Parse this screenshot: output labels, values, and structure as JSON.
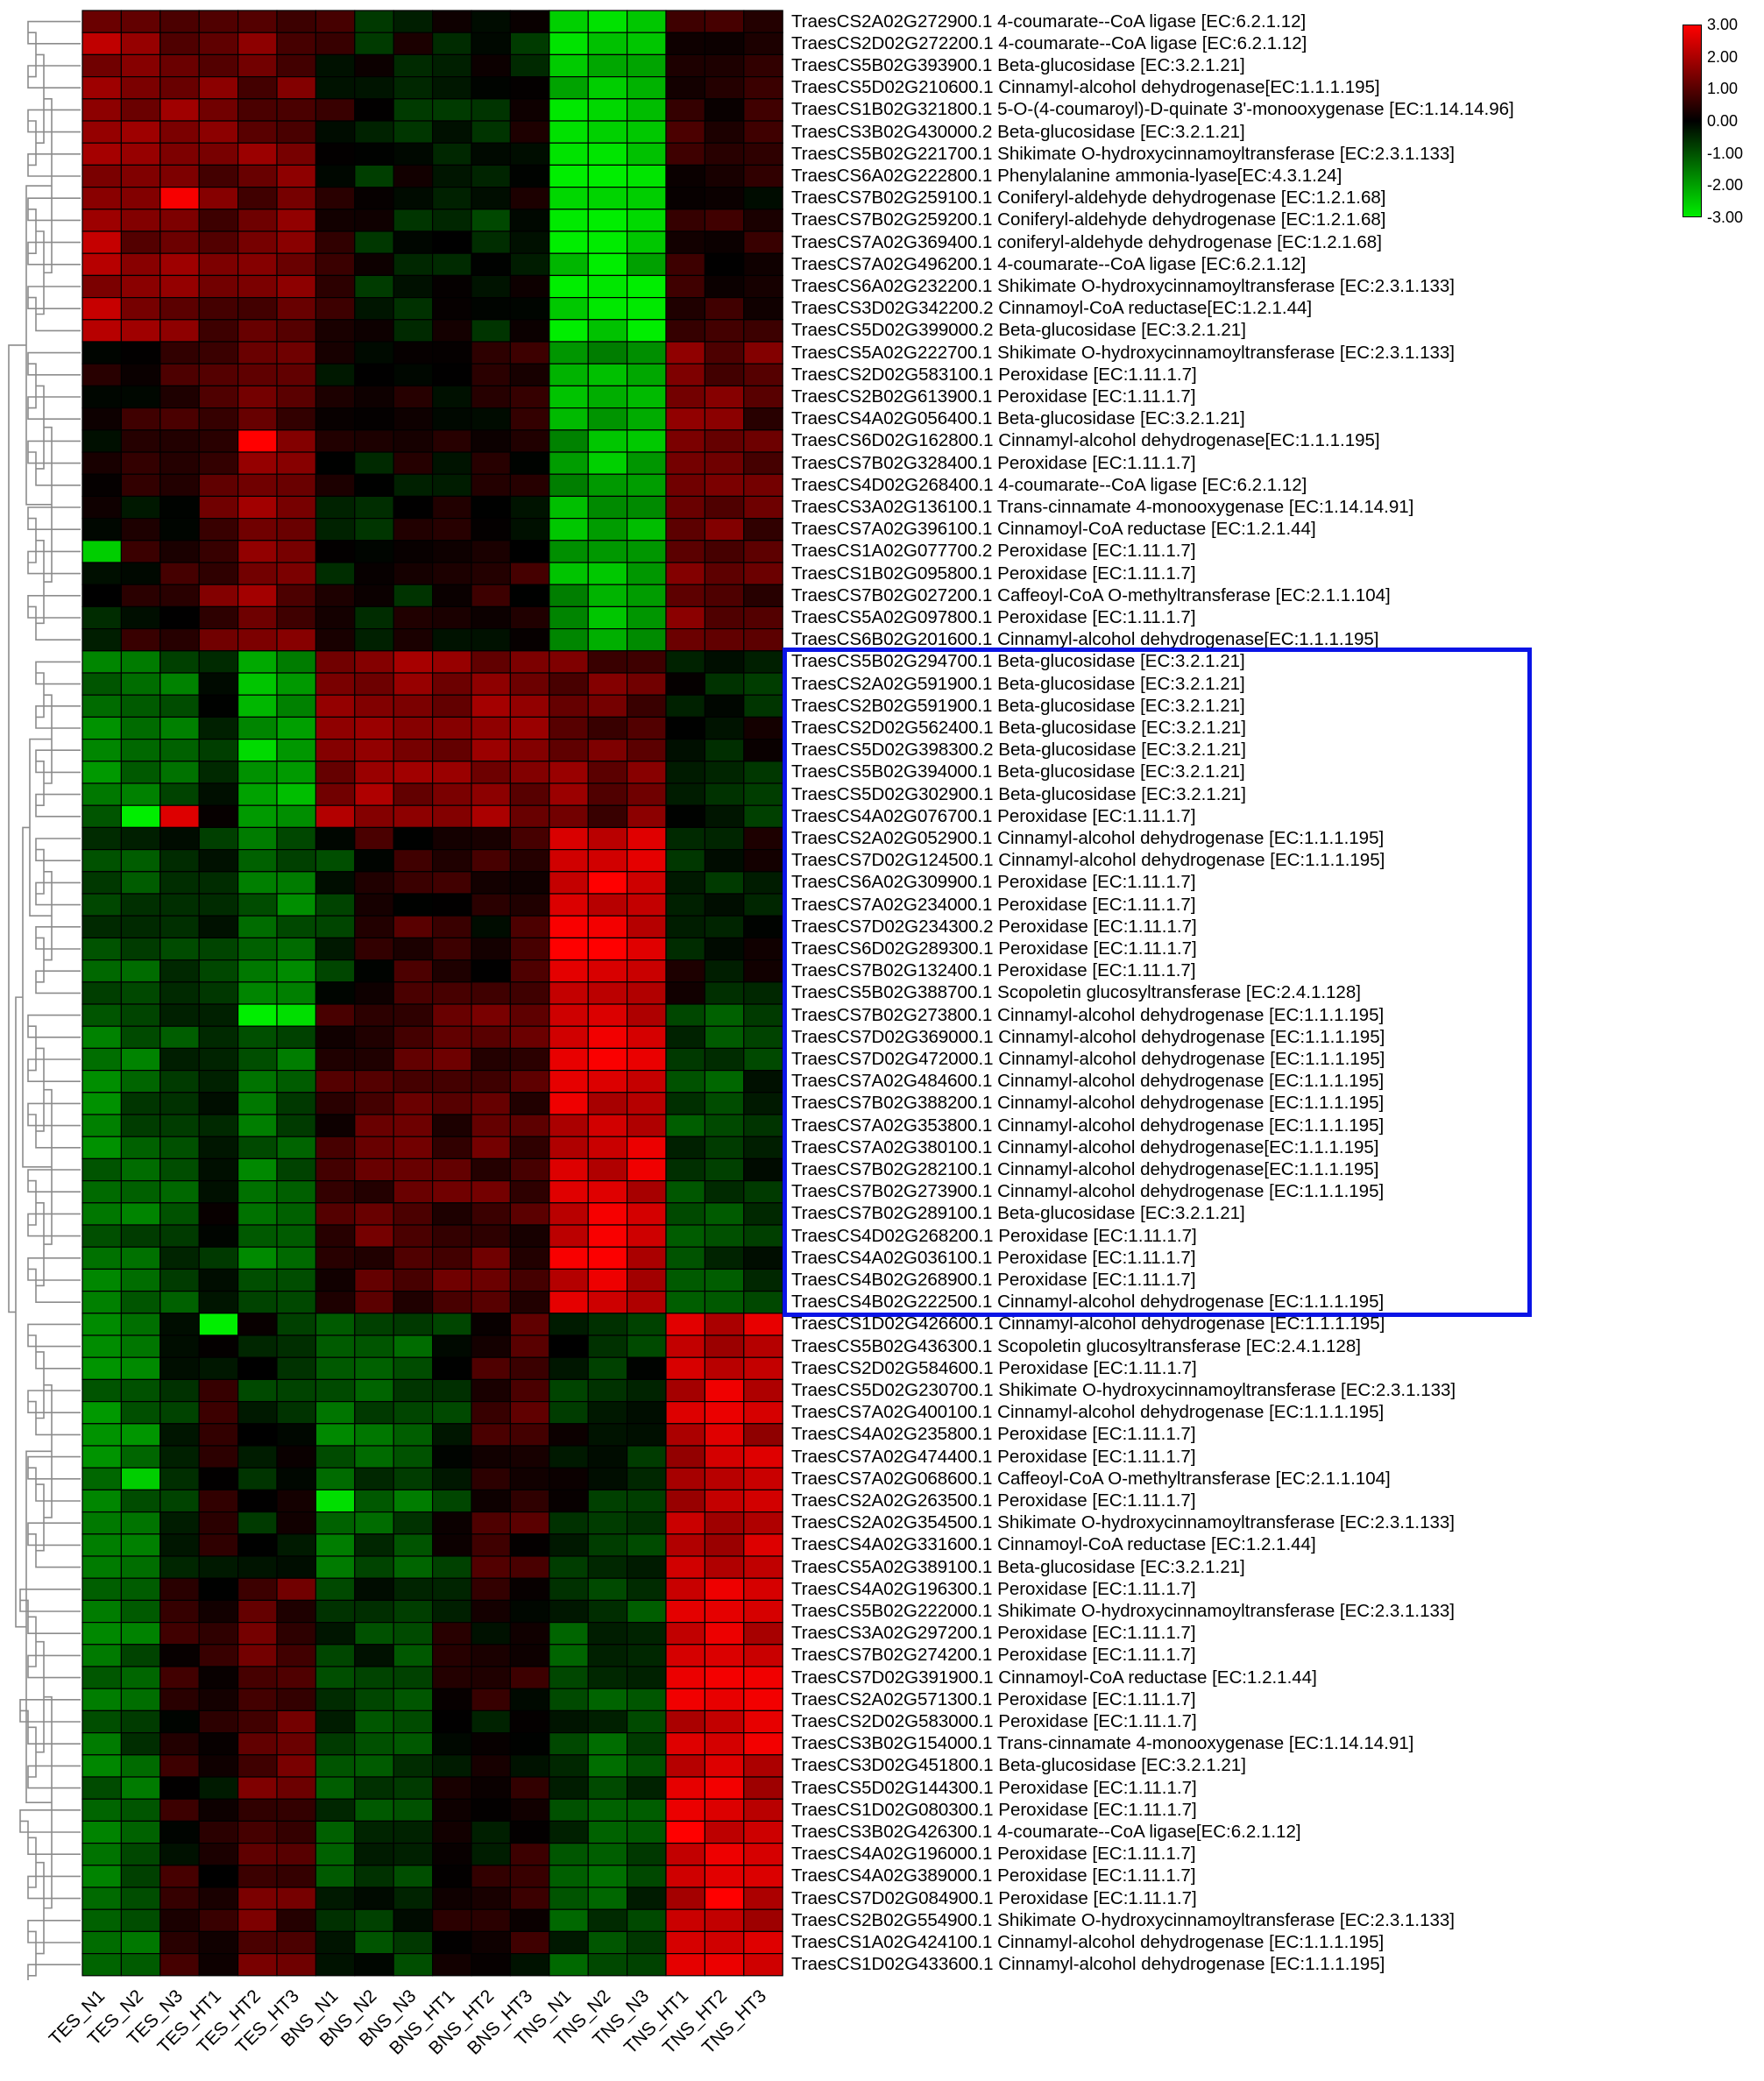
{
  "chart_data": {
    "type": "heatmap",
    "columns": [
      "TES_N1",
      "TES_N2",
      "TES_N3",
      "TES_HT1",
      "TES_HT2",
      "TES_HT3",
      "BNS_N1",
      "BNS_N2",
      "BNS_N3",
      "BNS_HT1",
      "BNS_HT2",
      "BNS_HT3",
      "TNS_N1",
      "TNS_N2",
      "TNS_N3",
      "TNS_HT1",
      "TNS_HT2",
      "TNS_HT3"
    ],
    "rows": [
      "TraesCS2A02G272900.1 4-coumarate--CoA ligase [EC:6.2.1.12]",
      "TraesCS2D02G272200.1 4-coumarate--CoA ligase [EC:6.2.1.12]",
      "TraesCS5B02G393900.1 Beta-glucosidase [EC:3.2.1.21]",
      "TraesCS5D02G210600.1 Cinnamyl-alcohol dehydrogenase[EC:1.1.1.195]",
      "TraesCS1B02G321800.1 5-O-(4-coumaroyl)-D-quinate 3'-monooxygenase [EC:1.14.14.96]",
      "TraesCS3B02G430000.2 Beta-glucosidase [EC:3.2.1.21]",
      "TraesCS5B02G221700.1 Shikimate O-hydroxycinnamoyltransferase [EC:2.3.1.133]",
      "TraesCS6A02G222800.1 Phenylalanine ammonia-lyase[EC:4.3.1.24]",
      "TraesCS7B02G259100.1 Coniferyl-aldehyde dehydrogenase [EC:1.2.1.68]",
      "TraesCS7B02G259200.1 Coniferyl-aldehyde dehydrogenase [EC:1.2.1.68]",
      "TraesCS7A02G369400.1 coniferyl-aldehyde dehydrogenase [EC:1.2.1.68]",
      "TraesCS7A02G496200.1 4-coumarate--CoA ligase [EC:6.2.1.12]",
      "TraesCS6A02G232200.1 Shikimate O-hydroxycinnamoyltransferase [EC:2.3.1.133]",
      "TraesCS3D02G342200.2 Cinnamoyl-CoA reductase[EC:1.2.1.44]",
      "TraesCS5D02G399000.2 Beta-glucosidase [EC:3.2.1.21]",
      "TraesCS5A02G222700.1 Shikimate O-hydroxycinnamoyltransferase [EC:2.3.1.133]",
      "TraesCS2D02G583100.1 Peroxidase [EC:1.11.1.7]",
      "TraesCS2B02G613900.1 Peroxidase [EC:1.11.1.7]",
      "TraesCS4A02G056400.1 Beta-glucosidase [EC:3.2.1.21]",
      "TraesCS6D02G162800.1 Cinnamyl-alcohol dehydrogenase[EC:1.1.1.195]",
      "TraesCS7B02G328400.1 Peroxidase [EC:1.11.1.7]",
      "TraesCS4D02G268400.1 4-coumarate--CoA ligase [EC:6.2.1.12]",
      "TraesCS3A02G136100.1 Trans-cinnamate 4-monooxygenase [EC:1.14.14.91]",
      "TraesCS7A02G396100.1 Cinnamoyl-CoA reductase [EC:1.2.1.44]",
      "TraesCS1A02G077700.2 Peroxidase [EC:1.11.1.7]",
      "TraesCS1B02G095800.1 Peroxidase [EC:1.11.1.7]",
      "TraesCS7B02G027200.1 Caffeoyl-CoA O-methyltransferase [EC:2.1.1.104]",
      "TraesCS5A02G097800.1 Peroxidase [EC:1.11.1.7]",
      "TraesCS6B02G201600.1 Cinnamyl-alcohol dehydrogenase[EC:1.1.1.195]",
      "TraesCS5B02G294700.1 Beta-glucosidase [EC:3.2.1.21]",
      "TraesCS2A02G591900.1 Beta-glucosidase [EC:3.2.1.21]",
      "TraesCS2B02G591900.1 Beta-glucosidase [EC:3.2.1.21]",
      "TraesCS2D02G562400.1 Beta-glucosidase [EC:3.2.1.21]",
      "TraesCS5D02G398300.2 Beta-glucosidase [EC:3.2.1.21]",
      "TraesCS5B02G394000.1 Beta-glucosidase [EC:3.2.1.21]",
      "TraesCS5D02G302900.1 Beta-glucosidase [EC:3.2.1.21]",
      "TraesCS4A02G076700.1 Peroxidase [EC:1.11.1.7]",
      "TraesCS2A02G052900.1 Cinnamyl-alcohol dehydrogenase [EC:1.1.1.195]",
      "TraesCS7D02G124500.1 Cinnamyl-alcohol dehydrogenase [EC:1.1.1.195]",
      "TraesCS6A02G309900.1 Peroxidase [EC:1.11.1.7]",
      "TraesCS7A02G234000.1 Peroxidase [EC:1.11.1.7]",
      "TraesCS7D02G234300.2 Peroxidase [EC:1.11.1.7]",
      "TraesCS6D02G289300.1 Peroxidase [EC:1.11.1.7]",
      "TraesCS7B02G132400.1 Peroxidase [EC:1.11.1.7]",
      "TraesCS5B02G388700.1 Scopoletin glucosyltransferase [EC:2.4.1.128]",
      "TraesCS7B02G273800.1 Cinnamyl-alcohol dehydrogenase [EC:1.1.1.195]",
      "TraesCS7D02G369000.1 Cinnamyl-alcohol dehydrogenase [EC:1.1.1.195]",
      "TraesCS7D02G472000.1 Cinnamyl-alcohol dehydrogenase [EC:1.1.1.195]",
      "TraesCS7A02G484600.1 Cinnamyl-alcohol dehydrogenase [EC:1.1.1.195]",
      "TraesCS7B02G388200.1 Cinnamyl-alcohol dehydrogenase [EC:1.1.1.195]",
      "TraesCS7A02G353800.1 Cinnamyl-alcohol dehydrogenase [EC:1.1.1.195]",
      "TraesCS7A02G380100.1 Cinnamyl-alcohol dehydrogenase[EC:1.1.1.195]",
      "TraesCS7B02G282100.1 Cinnamyl-alcohol dehydrogenase[EC:1.1.1.195]",
      "TraesCS7B02G273900.1 Cinnamyl-alcohol dehydrogenase [EC:1.1.1.195]",
      "TraesCS7B02G289100.1 Beta-glucosidase [EC:3.2.1.21]",
      "TraesCS4D02G268200.1 Peroxidase [EC:1.11.1.7]",
      "TraesCS4A02G036100.1 Peroxidase [EC:1.11.1.7]",
      "TraesCS4B02G268900.1 Peroxidase [EC:1.11.1.7]",
      "TraesCS4B02G222500.1 Cinnamyl-alcohol dehydrogenase [EC:1.1.1.195]",
      "TraesCS1D02G426600.1 Cinnamyl-alcohol dehydrogenase [EC:1.1.1.195]",
      "TraesCS5B02G436300.1 Scopoletin glucosyltransferase [EC:2.4.1.128]",
      "TraesCS2D02G584600.1 Peroxidase [EC:1.11.1.7]",
      "TraesCS5D02G230700.1 Shikimate O-hydroxycinnamoyltransferase [EC:2.3.1.133]",
      "TraesCS7A02G400100.1 Cinnamyl-alcohol dehydrogenase [EC:1.1.1.195]",
      "TraesCS4A02G235800.1 Peroxidase [EC:1.11.1.7]",
      "TraesCS7A02G474400.1 Peroxidase [EC:1.11.1.7]",
      "TraesCS7A02G068600.1 Caffeoyl-CoA O-methyltransferase [EC:2.1.1.104]",
      "TraesCS2A02G263500.1 Peroxidase [EC:1.11.1.7]",
      "TraesCS2A02G354500.1 Shikimate O-hydroxycinnamoyltransferase [EC:2.3.1.133]",
      "TraesCS4A02G331600.1 Cinnamoyl-CoA reductase [EC:1.2.1.44]",
      "TraesCS5A02G389100.1 Beta-glucosidase [EC:3.2.1.21]",
      "TraesCS4A02G196300.1 Peroxidase [EC:1.11.1.7]",
      "TraesCS5B02G222000.1 Shikimate O-hydroxycinnamoyltransferase [EC:2.3.1.133]",
      "TraesCS3A02G297200.1 Peroxidase [EC:1.11.1.7]",
      "TraesCS7B02G274200.1 Peroxidase [EC:1.11.1.7]",
      "TraesCS7D02G391900.1 Cinnamoyl-CoA reductase [EC:1.2.1.44]",
      "TraesCS2A02G571300.1 Peroxidase [EC:1.11.1.7]",
      "TraesCS2D02G583000.1 Peroxidase [EC:1.11.1.7]",
      "TraesCS3B02G154000.1 Trans-cinnamate 4-monooxygenase [EC:1.14.14.91]",
      "TraesCS3D02G451800.1 Beta-glucosidase [EC:3.2.1.21]",
      "TraesCS5D02G144300.1 Peroxidase [EC:1.11.1.7]",
      "TraesCS1D02G080300.1 Peroxidase [EC:1.11.1.7]",
      "TraesCS3B02G426300.1 4-coumarate--CoA ligase[EC:6.2.1.12]",
      "TraesCS4A02G196000.1 Peroxidase [EC:1.11.1.7]",
      "TraesCS4A02G389000.1 Peroxidase [EC:1.11.1.7]",
      "TraesCS7D02G084900.1 Peroxidase [EC:1.11.1.7]",
      "TraesCS2B02G554900.1 Shikimate O-hydroxycinnamoyltransferase [EC:2.3.1.133]",
      "TraesCS1A02G424100.1 Cinnamyl-alcohol dehydrogenase [EC:1.1.1.195]",
      "TraesCS1D02G433600.1 Cinnamyl-alcohol dehydrogenase [EC:1.1.1.195]"
    ],
    "block_patterns": [
      {
        "rows": [
          0,
          14
        ],
        "values": [
          1.8,
          1.5,
          1.4,
          1.2,
          1.3,
          1.2,
          0.3,
          -0.3,
          -0.2,
          -0.3,
          -0.4,
          -0.2,
          -2.6,
          -2.6,
          -2.5,
          0.6,
          0.3,
          0.2
        ]
      },
      {
        "rows": [
          15,
          28
        ],
        "values": [
          0.0,
          0.2,
          0.4,
          1.0,
          1.4,
          1.1,
          -0.1,
          -0.2,
          -0.1,
          0.2,
          0.2,
          0.3,
          -2.0,
          -2.1,
          -2.0,
          1.2,
          1.2,
          1.0
        ]
      },
      {
        "rows": [
          29,
          36
        ],
        "values": [
          -1.6,
          -1.2,
          -1.1,
          -0.4,
          -2.2,
          -2.1,
          1.6,
          1.8,
          1.6,
          1.3,
          1.5,
          1.3,
          1.3,
          1.2,
          1.2,
          -0.3,
          -0.5,
          -0.3
        ]
      },
      {
        "rows": [
          37,
          44
        ],
        "values": [
          -1.0,
          -0.9,
          -0.5,
          -0.4,
          -1.3,
          -1.3,
          -0.6,
          0.4,
          0.5,
          0.4,
          0.3,
          0.4,
          2.6,
          2.7,
          2.6,
          -0.2,
          -0.3,
          -0.2
        ]
      },
      {
        "rows": [
          45,
          58
        ],
        "values": [
          -1.4,
          -1.2,
          -0.9,
          -0.3,
          -1.2,
          -1.1,
          0.5,
          0.9,
          0.9,
          0.8,
          0.9,
          0.8,
          2.4,
          2.5,
          2.4,
          -0.7,
          -0.8,
          -0.6
        ]
      },
      {
        "rows": [
          59,
          70
        ],
        "values": [
          -1.4,
          -1.5,
          -0.6,
          0.2,
          -0.4,
          -0.3,
          -1.3,
          -1.0,
          -1.1,
          -0.4,
          0.5,
          0.6,
          -0.4,
          -0.5,
          -0.5,
          2.2,
          2.3,
          2.2
        ]
      },
      {
        "rows": [
          71,
          89
        ],
        "values": [
          -1.2,
          -1.1,
          0.3,
          0.2,
          1.1,
          0.9,
          -0.7,
          -0.6,
          -0.6,
          0.1,
          0.1,
          0.2,
          -0.8,
          -0.9,
          -0.8,
          2.4,
          2.5,
          2.4
        ]
      }
    ],
    "cell_overrides": [
      {
        "row": 36,
        "col": 1,
        "value": -3.0
      },
      {
        "row": 36,
        "col": 2,
        "value": 2.6
      },
      {
        "row": 45,
        "col": 4,
        "value": -3.0
      },
      {
        "row": 45,
        "col": 5,
        "value": -2.8
      },
      {
        "row": 59,
        "col": 3,
        "value": -3.0
      },
      {
        "row": 67,
        "col": 6,
        "value": -2.8
      },
      {
        "row": 66,
        "col": 1,
        "value": -2.6
      },
      {
        "row": 19,
        "col": 4,
        "value": 3.0
      },
      {
        "row": 8,
        "col": 2,
        "value": 2.9
      },
      {
        "row": 82,
        "col": 15,
        "value": 3.0
      },
      {
        "row": 24,
        "col": 0,
        "value": -2.6
      }
    ],
    "highlighted_rows": [
      29,
      58
    ],
    "color_scale": {
      "min": -3.0,
      "mid": 0.0,
      "max": 3.0,
      "low_color": "#00ee00",
      "mid_color": "#000000",
      "high_color": "#ff0000"
    },
    "legend_ticks": [
      "3.00",
      "2.00",
      "1.00",
      "0.00",
      "-1.00",
      "-2.00",
      "-3.00"
    ],
    "row_dendrogram": true,
    "highlight_color": "#0a14e6"
  }
}
